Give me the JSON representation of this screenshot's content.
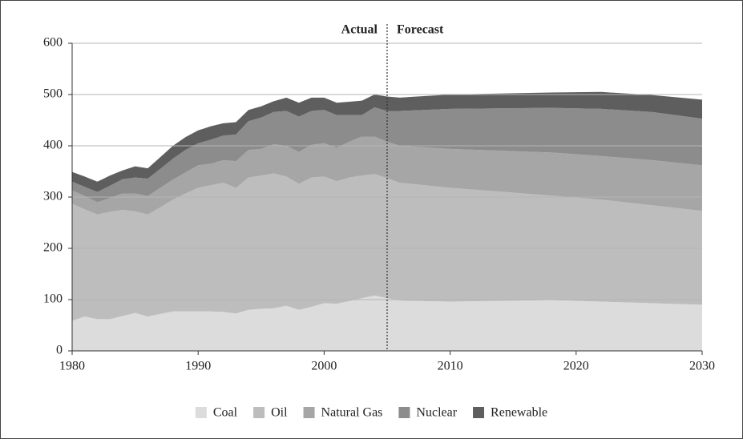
{
  "chart_data": {
    "type": "stacked_area",
    "x": [
      1980,
      1981,
      1982,
      1983,
      1984,
      1985,
      1986,
      1987,
      1988,
      1989,
      1990,
      1991,
      1992,
      1993,
      1994,
      1995,
      1996,
      1997,
      1998,
      1999,
      2000,
      2001,
      2002,
      2003,
      2004,
      2005,
      2006,
      2010,
      2018,
      2022,
      2026,
      2030
    ],
    "series": [
      {
        "name": "Coal",
        "color": "#dcdcdc",
        "values": [
          59,
          67,
          62,
          62,
          68,
          74,
          67,
          72,
          77,
          77,
          77,
          77,
          76,
          73,
          80,
          82,
          83,
          88,
          80,
          86,
          93,
          92,
          97,
          103,
          108,
          103,
          98,
          96,
          99,
          96,
          93,
          90
        ]
      },
      {
        "name": "Oil",
        "color": "#bdbdbd",
        "values": [
          228,
          209,
          204,
          209,
          207,
          198,
          199,
          208,
          218,
          230,
          241,
          246,
          252,
          245,
          258,
          260,
          263,
          252,
          246,
          252,
          247,
          239,
          241,
          239,
          237,
          234,
          230,
          222,
          204,
          199,
          191,
          183
        ]
      },
      {
        "name": "Natural Gas",
        "color": "#a6a6a6",
        "values": [
          26,
          26,
          24,
          27,
          32,
          35,
          36,
          38,
          39,
          41,
          44,
          42,
          44,
          52,
          54,
          52,
          57,
          60,
          62,
          64,
          65,
          65,
          70,
          76,
          73,
          71,
          72,
          76,
          84,
          85,
          88,
          89
        ]
      },
      {
        "name": "Nuclear",
        "color": "#8c8c8c",
        "values": [
          17,
          18,
          20,
          24,
          28,
          31,
          34,
          37,
          41,
          44,
          43,
          47,
          48,
          52,
          56,
          61,
          63,
          68,
          69,
          66,
          65,
          64,
          52,
          42,
          57,
          60,
          68,
          78,
          87,
          92,
          94,
          91
        ]
      },
      {
        "name": "Renewable",
        "color": "#5e5e5e",
        "values": [
          19,
          20,
          20,
          20,
          17,
          22,
          20,
          23,
          25,
          25,
          25,
          26,
          24,
          24,
          22,
          22,
          21,
          26,
          27,
          26,
          24,
          24,
          26,
          28,
          25,
          28,
          26,
          28,
          30,
          33,
          33,
          37
        ]
      }
    ],
    "xlim": [
      1980,
      2030
    ],
    "xticks": [
      1980,
      1990,
      2000,
      2010,
      2020,
      2030
    ],
    "ylim": [
      0,
      600
    ],
    "yticks": [
      0,
      100,
      200,
      300,
      400,
      500,
      600
    ],
    "grid": true,
    "forecast_start": 2005,
    "annotations": [
      "Actual",
      "Forecast"
    ],
    "legend": "bottom"
  }
}
